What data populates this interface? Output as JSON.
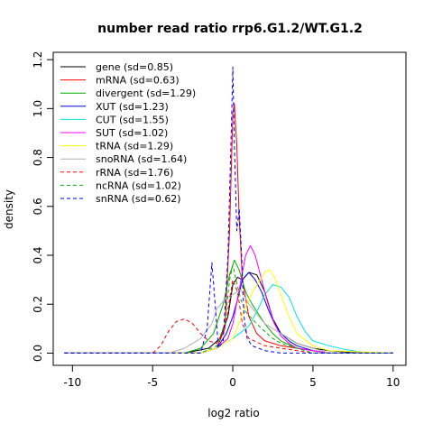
{
  "chart_data": {
    "type": "line",
    "title": "number read ratio rrp6.G1.2/WT.G1.2",
    "xlabel": "log2 ratio",
    "ylabel": "density",
    "xlim": [
      -11.2,
      10.8
    ],
    "ylim": [
      -0.05,
      1.23
    ],
    "xticks": [
      -10,
      -5,
      0,
      5,
      10
    ],
    "yticks": [
      0.0,
      0.2,
      0.4,
      0.6,
      0.8,
      1.0,
      1.2
    ],
    "legend_position": "top-left",
    "series": [
      {
        "name": "gene (sd=0.85)",
        "color": "#000000",
        "dash": "solid",
        "x": [
          -10.5,
          -3,
          -1.5,
          -0.8,
          -0.3,
          0,
          0.3,
          0.6,
          1.0,
          1.5,
          2.0,
          2.5,
          3.0,
          3.5,
          4.0,
          5.0,
          6.0,
          8.0,
          10.0
        ],
        "y": [
          0,
          0,
          0.02,
          0.06,
          0.15,
          0.28,
          0.31,
          0.3,
          0.33,
          0.32,
          0.25,
          0.14,
          0.08,
          0.06,
          0.04,
          0.02,
          0.01,
          0,
          0
        ]
      },
      {
        "name": "mRNA (sd=0.63)",
        "color": "#ff0000",
        "dash": "solid",
        "x": [
          -10.5,
          -2,
          -1,
          -0.5,
          -0.2,
          0,
          0.1,
          0.25,
          0.4,
          0.6,
          1.0,
          1.5,
          2.0,
          3.0,
          4.0,
          6.0,
          10.0
        ],
        "y": [
          0,
          0,
          0.02,
          0.1,
          0.5,
          0.98,
          1.02,
          0.85,
          0.55,
          0.3,
          0.15,
          0.08,
          0.05,
          0.03,
          0.02,
          0,
          0
        ]
      },
      {
        "name": "divergent (sd=1.29)",
        "color": "#00b000",
        "dash": "solid",
        "x": [
          -10.5,
          -3,
          -2,
          -1.2,
          -0.6,
          -0.2,
          0.1,
          0.4,
          0.8,
          1.2,
          1.6,
          2.0,
          2.5,
          3.0,
          4.0,
          5.0,
          6.0,
          10.0
        ],
        "y": [
          0,
          0,
          0.02,
          0.08,
          0.2,
          0.32,
          0.38,
          0.34,
          0.25,
          0.2,
          0.16,
          0.12,
          0.08,
          0.05,
          0.02,
          0.01,
          0,
          0
        ]
      },
      {
        "name": "XUT (sd=1.23)",
        "color": "#0000ff",
        "dash": "solid",
        "x": [
          -10.5,
          -2,
          -1,
          -0.4,
          0,
          0.3,
          0.6,
          1.0,
          1.4,
          1.8,
          2.2,
          2.6,
          3.0,
          3.5,
          4.0,
          5.0,
          6.0,
          10.0
        ],
        "y": [
          0,
          0,
          0.02,
          0.08,
          0.15,
          0.22,
          0.3,
          0.33,
          0.3,
          0.25,
          0.18,
          0.12,
          0.08,
          0.05,
          0.03,
          0.01,
          0,
          0
        ]
      },
      {
        "name": "CUT (sd=1.55)",
        "color": "#00e5e5",
        "dash": "solid",
        "x": [
          -10.5,
          -2,
          -1,
          0,
          1,
          1.5,
          2.0,
          2.5,
          3.0,
          3.5,
          4.0,
          4.5,
          5.0,
          6.0,
          7.0,
          8.0,
          9.0,
          10.0
        ],
        "y": [
          0,
          0,
          0.02,
          0.06,
          0.11,
          0.17,
          0.24,
          0.28,
          0.27,
          0.23,
          0.15,
          0.09,
          0.05,
          0.03,
          0.015,
          0.005,
          0,
          0
        ]
      },
      {
        "name": "SUT (sd=1.02)",
        "color": "#ff00ff",
        "dash": "solid",
        "x": [
          -10.5,
          -2,
          -1,
          -0.3,
          0,
          0.4,
          0.8,
          1.1,
          1.4,
          1.8,
          2.2,
          2.6,
          3.0,
          3.5,
          4.0,
          5.0,
          6.0,
          10.0
        ],
        "y": [
          0,
          0,
          0.02,
          0.06,
          0.12,
          0.26,
          0.4,
          0.44,
          0.4,
          0.3,
          0.2,
          0.12,
          0.07,
          0.04,
          0.02,
          0.01,
          0,
          0
        ]
      },
      {
        "name": "tRNA (sd=1.29)",
        "color": "#ffff00",
        "dash": "solid",
        "x": [
          -10.5,
          -2,
          -1,
          0,
          0.5,
          1.0,
          1.5,
          2.0,
          2.3,
          2.6,
          3.0,
          3.5,
          4.0,
          5.0,
          6.0,
          10.0
        ],
        "y": [
          0,
          0,
          0.02,
          0.06,
          0.14,
          0.22,
          0.28,
          0.33,
          0.34,
          0.31,
          0.24,
          0.15,
          0.08,
          0.03,
          0.01,
          0
        ]
      },
      {
        "name": "snoRNA (sd=1.64)",
        "color": "#b0b0b0",
        "dash": "solid",
        "x": [
          -10.5,
          -4,
          -3,
          -2,
          -1.3,
          -1,
          -0.5,
          0,
          0.5,
          1.0,
          1.5,
          2.0,
          2.5,
          3.0,
          4.0,
          5.0,
          6.0,
          10.0
        ],
        "y": [
          0,
          0,
          0.02,
          0.06,
          0.12,
          0.18,
          0.22,
          0.24,
          0.26,
          0.2,
          0.16,
          0.12,
          0.1,
          0.08,
          0.04,
          0.02,
          0,
          0
        ]
      },
      {
        "name": "rRNA (sd=1.76)",
        "color": "#ff0000",
        "dash": "dashed",
        "x": [
          -10.5,
          -5.0,
          -4.5,
          -4.0,
          -3.5,
          -3.0,
          -2.5,
          -2.0,
          -1.5,
          -1.0,
          -0.5,
          0,
          0.3,
          0.6,
          1.0,
          2.0,
          3.0,
          4.0,
          5.0,
          10.0
        ],
        "y": [
          0,
          0,
          0.03,
          0.09,
          0.13,
          0.14,
          0.12,
          0.08,
          0.05,
          0.04,
          0.1,
          0.3,
          0.25,
          0.12,
          0.06,
          0.03,
          0.02,
          0.01,
          0,
          0
        ]
      },
      {
        "name": "ncRNA (sd=1.02)",
        "color": "#00b000",
        "dash": "dashed",
        "x": [
          -10.5,
          -2,
          -1,
          -0.5,
          -0.2,
          0,
          0.2,
          0.5,
          0.8,
          1.2,
          1.8,
          2.5,
          3.0,
          4.0,
          5.0,
          10.0
        ],
        "y": [
          0,
          0,
          0.03,
          0.12,
          0.3,
          0.36,
          0.3,
          0.22,
          0.17,
          0.14,
          0.1,
          0.06,
          0.04,
          0.02,
          0,
          0
        ]
      },
      {
        "name": "snRNA (sd=0.62)",
        "color": "#0000ff",
        "dash": "dashed",
        "x": [
          -10.5,
          -2,
          -1.6,
          -1.3,
          -1.1,
          -0.9,
          -0.6,
          -0.3,
          -0.1,
          0,
          0.1,
          0.25,
          0.4,
          0.55,
          0.7,
          0.9,
          1.2,
          1.6,
          2.0,
          3.0,
          10.0
        ],
        "y": [
          0,
          0,
          0.1,
          0.37,
          0.2,
          0.02,
          0.05,
          0.4,
          0.9,
          1.17,
          0.85,
          0.5,
          0.59,
          0.4,
          0.15,
          0.06,
          0.03,
          0.02,
          0.01,
          0,
          0
        ]
      }
    ]
  }
}
